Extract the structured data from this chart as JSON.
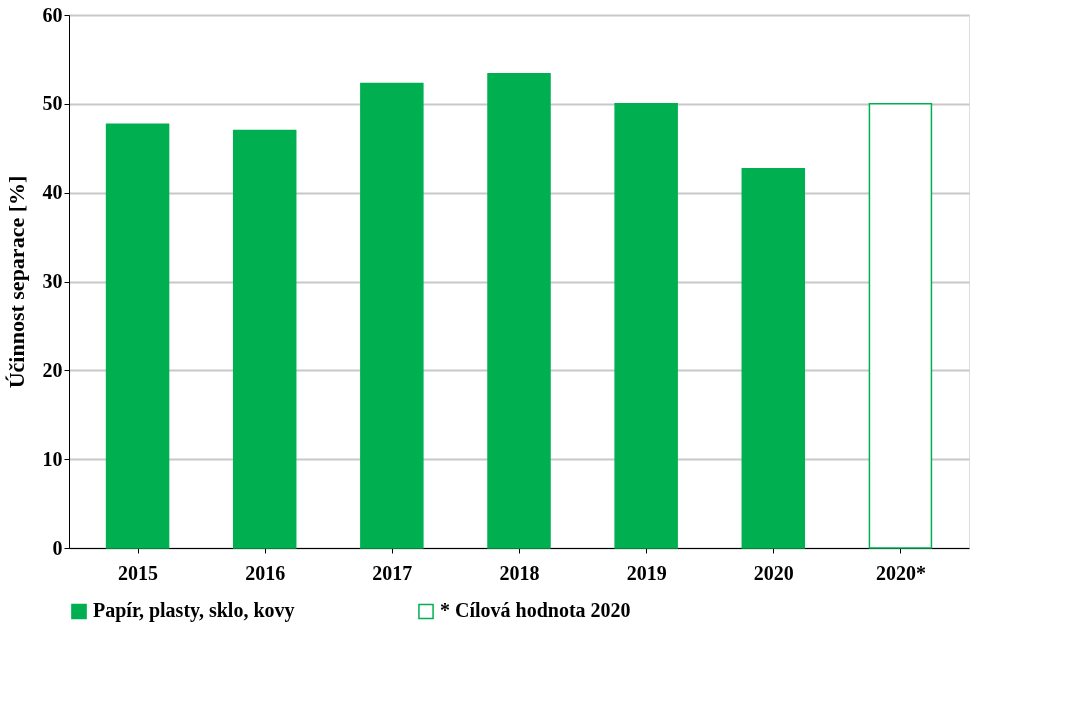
{
  "chart_data": {
    "type": "bar",
    "ylabel": "Účinnost separace [%]",
    "categories": [
      "2015",
      "2016",
      "2017",
      "2018",
      "2019",
      "2020",
      "2020*"
    ],
    "series": [
      {
        "name": "Papír, plasty, sklo, kovy",
        "color": "#00b050",
        "values": [
          47.7,
          47.0,
          52.3,
          53.4,
          50.0,
          42.7,
          null
        ]
      },
      {
        "name": "* Cílová hodnota 2020",
        "color": "#ffffff",
        "values": [
          null,
          null,
          null,
          null,
          null,
          null,
          50
        ]
      }
    ],
    "ylim": [
      0,
      60
    ],
    "yticks": [
      0,
      10,
      20,
      30,
      40,
      50,
      60
    ],
    "grid": "y",
    "legend": "bottom"
  }
}
